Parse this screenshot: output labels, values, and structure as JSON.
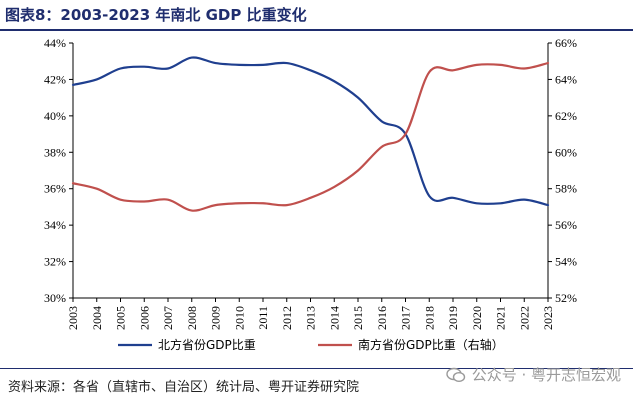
{
  "title": "图表8：2003-2023 年南北 GDP 比重变化",
  "source": "资料来源：各省（直辖市、自治区）统计局、粤开证券研究院",
  "watermark": "公众号 · 粤开志恒宏观",
  "chart_data": {
    "type": "line",
    "x": [
      "2003",
      "2004",
      "2005",
      "2006",
      "2007",
      "2008",
      "2009",
      "2010",
      "2011",
      "2012",
      "2013",
      "2014",
      "2015",
      "2016",
      "2017",
      "2018",
      "2019",
      "2020",
      "2021",
      "2022",
      "2023"
    ],
    "left_axis": {
      "ticks": [
        "30%",
        "32%",
        "34%",
        "36%",
        "38%",
        "40%",
        "42%",
        "44%"
      ],
      "ylim": [
        30,
        44
      ]
    },
    "right_axis": {
      "ticks": [
        "52%",
        "54%",
        "56%",
        "58%",
        "60%",
        "62%",
        "64%",
        "66%"
      ],
      "ylim": [
        52,
        66
      ]
    },
    "grid": false,
    "legend_position": "bottom",
    "series": [
      {
        "name": "北方省份GDP比重",
        "axis": "left",
        "color": "#1f3f8f",
        "values": [
          41.7,
          42.0,
          42.6,
          42.7,
          42.6,
          43.2,
          42.9,
          42.8,
          42.8,
          42.9,
          42.5,
          41.9,
          41.0,
          39.7,
          39.0,
          35.6,
          35.5,
          35.2,
          35.2,
          35.4,
          35.1
        ]
      },
      {
        "name": "南方省份GDP比重（右轴）",
        "axis": "right",
        "color": "#c0504d",
        "values": [
          58.3,
          58.0,
          57.4,
          57.3,
          57.4,
          56.8,
          57.1,
          57.2,
          57.2,
          57.1,
          57.5,
          58.1,
          59.0,
          60.3,
          61.0,
          64.4,
          64.5,
          64.8,
          64.8,
          64.6,
          64.9
        ]
      }
    ]
  }
}
